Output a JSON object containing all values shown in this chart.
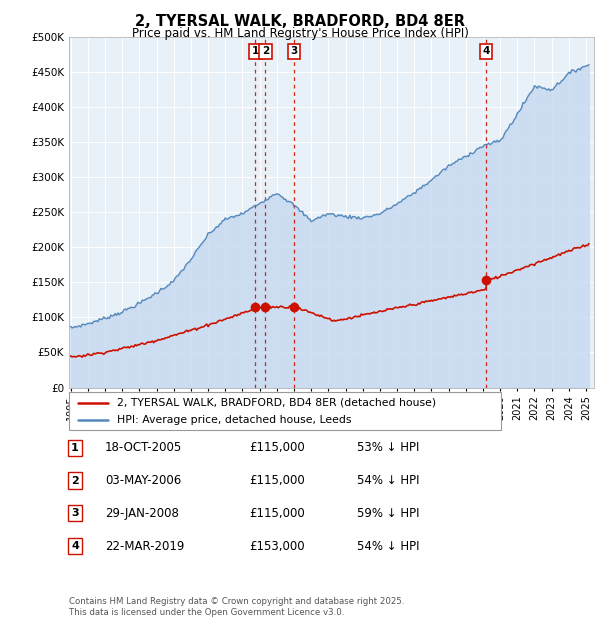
{
  "title": "2, TYERSAL WALK, BRADFORD, BD4 8ER",
  "subtitle": "Price paid vs. HM Land Registry's House Price Index (HPI)",
  "ylim": [
    0,
    500000
  ],
  "yticks": [
    0,
    50000,
    100000,
    150000,
    200000,
    250000,
    300000,
    350000,
    400000,
    450000,
    500000
  ],
  "hpi_color": "#5588bb",
  "hpi_fill_color": "#c8daf0",
  "price_color": "#cc1100",
  "legend_line1": "2, TYERSAL WALK, BRADFORD, BD4 8ER (detached house)",
  "legend_line2": "HPI: Average price, detached house, Leeds",
  "sales": [
    {
      "num": 1,
      "date_num": [
        2005,
        10
      ],
      "price": 115000,
      "label": "18-OCT-2005",
      "pct": "53%",
      "dir": "↓"
    },
    {
      "num": 2,
      "date_num": [
        2006,
        5
      ],
      "price": 115000,
      "label": "03-MAY-2006",
      "pct": "54%",
      "dir": "↓"
    },
    {
      "num": 3,
      "date_num": [
        2008,
        1
      ],
      "price": 115000,
      "label": "29-JAN-2008",
      "pct": "59%",
      "dir": "↓"
    },
    {
      "num": 4,
      "date_num": [
        2019,
        3
      ],
      "price": 153000,
      "label": "22-MAR-2019",
      "pct": "54%",
      "dir": "↓"
    }
  ],
  "footer": "Contains HM Land Registry data © Crown copyright and database right 2025.\nThis data is licensed under the Open Government Licence v3.0.",
  "hpi_anchor_years": [
    1995,
    1996,
    1997,
    1998,
    1999,
    2000,
    2001,
    2002,
    2003,
    2004,
    2005,
    2006,
    2007,
    2008,
    2009,
    2010,
    2011,
    2012,
    2013,
    2014,
    2015,
    2016,
    2017,
    2018,
    2019,
    2020,
    2021,
    2022,
    2023,
    2024,
    2025
  ],
  "hpi_anchor_vals": [
    85000,
    91000,
    99000,
    108000,
    120000,
    135000,
    152000,
    183000,
    218000,
    240000,
    248000,
    263000,
    278000,
    260000,
    238000,
    248000,
    244000,
    242000,
    248000,
    262000,
    278000,
    296000,
    316000,
    330000,
    345000,
    352000,
    390000,
    430000,
    425000,
    448000,
    460000
  ]
}
